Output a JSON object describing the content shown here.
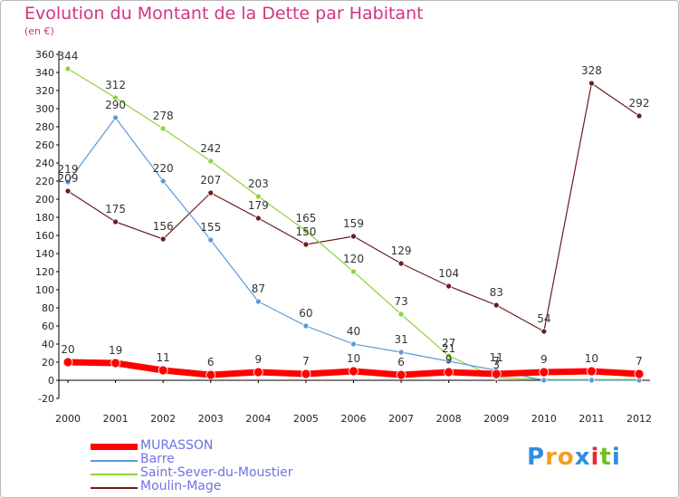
{
  "header": {
    "title": "Evolution du Montant de la Dette par Habitant",
    "subtitle": "(en €)"
  },
  "logo": {
    "text": "Proxiti",
    "colors": [
      "#2e8fe0",
      "#f0a020",
      "#f0a020",
      "#2e8fe0",
      "#e03030",
      "#70c020",
      "#2e8fe0"
    ]
  },
  "chart_data": {
    "type": "line",
    "title": "Evolution du Montant de la Dette par Habitant",
    "subtitle": "(en €)",
    "xlabel": "",
    "ylabel": "",
    "x": [
      "2000",
      "2001",
      "2002",
      "2003",
      "2004",
      "2005",
      "2006",
      "2007",
      "2008",
      "2009",
      "2010",
      "2011",
      "2012"
    ],
    "ylim": [
      -20,
      360
    ],
    "yticks": [
      -20,
      0,
      20,
      40,
      60,
      80,
      100,
      120,
      140,
      160,
      180,
      200,
      220,
      240,
      260,
      280,
      300,
      320,
      340,
      360
    ],
    "grid": false,
    "legend_position": "bottom-left",
    "series": [
      {
        "name": "Moulin-Mage",
        "color": "#6b1c1c",
        "width": 1.2,
        "values": [
          209,
          175,
          156,
          207,
          179,
          150,
          159,
          129,
          104,
          83,
          54,
          328,
          292
        ],
        "labels": [
          "209",
          "175",
          "156",
          "207",
          "179",
          "150",
          "159",
          "129",
          "104",
          "83",
          "54",
          "328",
          "292"
        ]
      },
      {
        "name": "Saint-Sever-du-Moustier",
        "color": "#8ed33a",
        "width": 1.2,
        "values": [
          344,
          312,
          278,
          242,
          203,
          165,
          120,
          73,
          27,
          3,
          1,
          1,
          1
        ],
        "labels": [
          "344",
          "312",
          "278",
          "242",
          "203",
          "165",
          "120",
          "73",
          "27",
          "3",
          "",
          "",
          ""
        ]
      },
      {
        "name": "Barre",
        "color": "#5a9bd5",
        "width": 1.2,
        "values": [
          219,
          290,
          220,
          155,
          87,
          60,
          40,
          31,
          21,
          11,
          0,
          0,
          0
        ],
        "labels": [
          "219",
          "290",
          "220",
          "155",
          "87",
          "60",
          "40",
          "31",
          "21",
          "11",
          "",
          "",
          ""
        ]
      },
      {
        "name": "MURASSON",
        "color": "#ff0000",
        "width": 7,
        "values": [
          20,
          19,
          11,
          6,
          9,
          7,
          10,
          6,
          9,
          7,
          9,
          10,
          7
        ],
        "labels": [
          "20",
          "19",
          "11",
          "6",
          "9",
          "7",
          "10",
          "6",
          "9",
          "7",
          "9",
          "10",
          "7"
        ]
      }
    ],
    "legend": [
      {
        "name": "MURASSON",
        "color": "#ff0000",
        "thick": true
      },
      {
        "name": "Barre",
        "color": "#5a9bd5",
        "thick": false
      },
      {
        "name": "Saint-Sever-du-Moustier",
        "color": "#8ed33a",
        "thick": false
      },
      {
        "name": "Moulin-Mage",
        "color": "#6b1c1c",
        "thick": false
      }
    ]
  }
}
